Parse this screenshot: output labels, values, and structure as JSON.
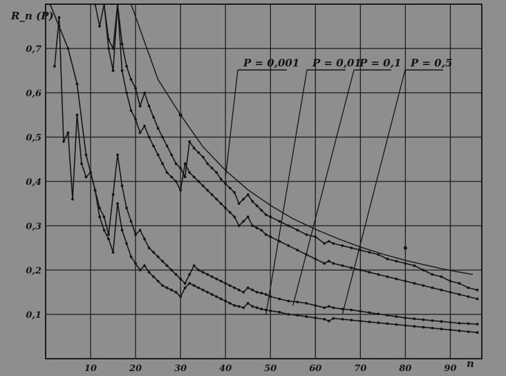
{
  "chart_data": {
    "type": "line",
    "ylabel": "R_n (P)",
    "xlabel": "n",
    "xlim": [
      0,
      97
    ],
    "ylim": [
      0,
      0.8
    ],
    "x_ticks": [
      10,
      20,
      30,
      40,
      50,
      60,
      70,
      80,
      90
    ],
    "y_ticks": [
      "0,1",
      "0,2",
      "0,3",
      "0,4",
      "0,5",
      "0,6",
      "0,7"
    ],
    "y_tick_values": [
      0.1,
      0.2,
      0.3,
      0.4,
      0.5,
      0.6,
      0.7
    ],
    "grid": true,
    "smooth_curve": {
      "x": [
        19,
        25,
        30,
        35,
        40,
        45,
        50,
        55,
        60,
        65,
        70,
        75,
        80,
        85,
        90,
        95
      ],
      "y": [
        0.8,
        0.63,
        0.55,
        0.478,
        0.425,
        0.381,
        0.346,
        0.316,
        0.292,
        0.271,
        0.252,
        0.236,
        0.222,
        0.21,
        0.199,
        0.19
      ]
    },
    "series": [
      {
        "name": "P = 0,001",
        "x": [
          13,
          14,
          15,
          16,
          17,
          18,
          19,
          20,
          21,
          22,
          23,
          24,
          25,
          26,
          27,
          28,
          29,
          30,
          31,
          32,
          33,
          34,
          35,
          36,
          37,
          38,
          39,
          40,
          41,
          42,
          43,
          44,
          45,
          46,
          47,
          48,
          49,
          50,
          52,
          54,
          56,
          58,
          60,
          62,
          63,
          64,
          66,
          68,
          70,
          72,
          74,
          76,
          78,
          80,
          82,
          84,
          86,
          88,
          90,
          92,
          94,
          96
        ],
        "y": [
          0.8,
          0.72,
          0.7,
          0.8,
          0.71,
          0.66,
          0.63,
          0.61,
          0.57,
          0.6,
          0.57,
          0.545,
          0.52,
          0.5,
          0.48,
          0.46,
          0.44,
          0.43,
          0.41,
          0.49,
          0.475,
          0.465,
          0.455,
          0.44,
          0.43,
          0.42,
          0.405,
          0.395,
          0.385,
          0.375,
          0.35,
          0.36,
          0.37,
          0.355,
          0.345,
          0.335,
          0.325,
          0.32,
          0.31,
          0.3,
          0.29,
          0.28,
          0.275,
          0.26,
          0.265,
          0.26,
          0.255,
          0.25,
          0.245,
          0.24,
          0.235,
          0.225,
          0.22,
          0.215,
          0.21,
          0.2,
          0.19,
          0.185,
          0.175,
          0.17,
          0.16,
          0.155
        ]
      },
      {
        "name": "P = 0,01",
        "x": [
          11,
          12,
          13,
          14,
          15,
          16,
          17,
          18,
          19,
          20,
          21,
          22,
          23,
          24,
          25,
          26,
          27,
          28,
          29,
          30,
          31,
          32,
          33,
          34,
          35,
          36,
          37,
          38,
          39,
          40,
          41,
          42,
          43,
          44,
          45,
          46,
          47,
          48,
          49,
          50,
          52,
          54,
          56,
          58,
          60,
          62,
          63,
          64,
          66,
          68,
          70,
          72,
          74,
          76,
          78,
          80,
          82,
          84,
          86,
          88,
          90,
          92,
          94,
          96
        ],
        "y": [
          0.8,
          0.75,
          0.8,
          0.7,
          0.65,
          0.8,
          0.65,
          0.6,
          0.56,
          0.54,
          0.51,
          0.525,
          0.5,
          0.48,
          0.46,
          0.44,
          0.42,
          0.41,
          0.4,
          0.38,
          0.44,
          0.42,
          0.41,
          0.4,
          0.39,
          0.38,
          0.37,
          0.36,
          0.35,
          0.34,
          0.33,
          0.32,
          0.3,
          0.31,
          0.32,
          0.3,
          0.295,
          0.29,
          0.28,
          0.275,
          0.265,
          0.255,
          0.245,
          0.235,
          0.225,
          0.215,
          0.22,
          0.215,
          0.21,
          0.205,
          0.2,
          0.195,
          0.19,
          0.185,
          0.18,
          0.175,
          0.17,
          0.165,
          0.16,
          0.155,
          0.15,
          0.145,
          0.14,
          0.135
        ]
      },
      {
        "name": "P = 0,1",
        "x": [
          2,
          3,
          4,
          5,
          6,
          7,
          8,
          9,
          10,
          11,
          12,
          13,
          14,
          15,
          16,
          17,
          18,
          19,
          20,
          21,
          22,
          23,
          24,
          25,
          26,
          27,
          28,
          29,
          30,
          31,
          32,
          33,
          34,
          35,
          36,
          37,
          38,
          39,
          40,
          41,
          42,
          43,
          44,
          45,
          46,
          47,
          48,
          49,
          50,
          52,
          54,
          56,
          58,
          60,
          62,
          63,
          64,
          66,
          68,
          70,
          72,
          74,
          76,
          78,
          80,
          82,
          84,
          86,
          88,
          90,
          92,
          94,
          96
        ],
        "y": [
          0.66,
          0.77,
          0.49,
          0.51,
          0.36,
          0.55,
          0.44,
          0.41,
          0.42,
          0.38,
          0.34,
          0.32,
          0.28,
          0.37,
          0.46,
          0.39,
          0.34,
          0.31,
          0.28,
          0.29,
          0.27,
          0.25,
          0.24,
          0.23,
          0.22,
          0.21,
          0.2,
          0.19,
          0.18,
          0.17,
          0.19,
          0.21,
          0.2,
          0.195,
          0.19,
          0.185,
          0.18,
          0.175,
          0.17,
          0.165,
          0.16,
          0.155,
          0.15,
          0.16,
          0.155,
          0.15,
          0.148,
          0.145,
          0.14,
          0.135,
          0.13,
          0.128,
          0.125,
          0.12,
          0.115,
          0.118,
          0.115,
          0.112,
          0.11,
          0.107,
          0.104,
          0.101,
          0.098,
          0.095,
          0.092,
          0.09,
          0.088,
          0.086,
          0.084,
          0.082,
          0.08,
          0.079,
          0.078
        ]
      },
      {
        "name": "P = 0,5",
        "x": [
          1,
          3,
          5,
          7,
          9,
          10,
          11,
          12,
          13,
          14,
          15,
          16,
          17,
          18,
          19,
          20,
          21,
          22,
          23,
          24,
          25,
          26,
          27,
          28,
          29,
          30,
          31,
          32,
          33,
          34,
          35,
          36,
          37,
          38,
          39,
          40,
          41,
          42,
          43,
          44,
          45,
          46,
          47,
          48,
          49,
          50,
          52,
          54,
          56,
          58,
          60,
          62,
          63,
          64,
          66,
          68,
          70,
          72,
          74,
          76,
          78,
          80,
          82,
          84,
          86,
          88,
          90,
          92,
          94,
          96
        ],
        "y": [
          0.8,
          0.75,
          0.7,
          0.62,
          0.46,
          0.42,
          0.38,
          0.32,
          0.29,
          0.27,
          0.24,
          0.35,
          0.29,
          0.26,
          0.23,
          0.215,
          0.2,
          0.21,
          0.195,
          0.185,
          0.175,
          0.165,
          0.16,
          0.155,
          0.15,
          0.14,
          0.16,
          0.17,
          0.165,
          0.16,
          0.155,
          0.15,
          0.145,
          0.14,
          0.135,
          0.13,
          0.125,
          0.12,
          0.118,
          0.115,
          0.125,
          0.118,
          0.115,
          0.112,
          0.11,
          0.108,
          0.105,
          0.1,
          0.098,
          0.095,
          0.092,
          0.089,
          0.085,
          0.091,
          0.089,
          0.087,
          0.085,
          0.083,
          0.081,
          0.079,
          0.077,
          0.075,
          0.073,
          0.071,
          0.069,
          0.067,
          0.065,
          0.063,
          0.061,
          0.059
        ]
      }
    ],
    "annotations": [
      {
        "text": "P = 0,001",
        "line_to": [
          40,
          0.41
        ]
      },
      {
        "text": "P = 0,01",
        "line_to": [
          49,
          0.1
        ]
      },
      {
        "text": "P = 0,1",
        "line_to": [
          55,
          0.12
        ]
      },
      {
        "text": "P = 0,5",
        "line_to": [
          66,
          0.1
        ]
      }
    ],
    "colors": {
      "background": "#8e8e8e",
      "ink": "#141414",
      "grid": "#1c1c1c"
    }
  }
}
